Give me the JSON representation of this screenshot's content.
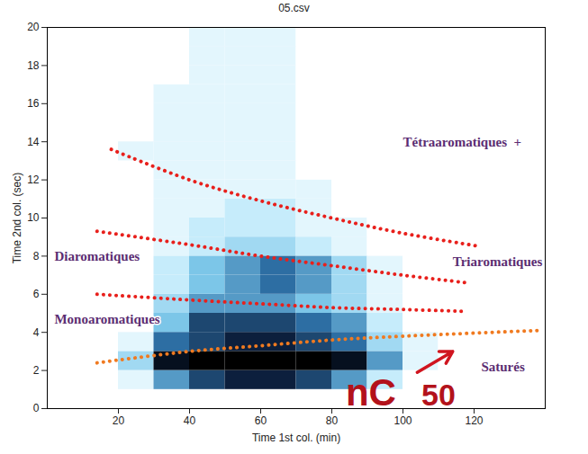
{
  "chart_data": {
    "type": "heatmap",
    "title": "05.csv",
    "x_label": "Time 1st col. (min)",
    "y_label": "Time 2nd col. (sec)",
    "xlim": [
      0,
      140
    ],
    "ylim": [
      0,
      20
    ],
    "xticks": [
      20,
      40,
      60,
      80,
      100,
      120
    ],
    "yticks": [
      0,
      2,
      4,
      6,
      8,
      10,
      12,
      14,
      16,
      18,
      20
    ],
    "grid": false,
    "cells": {
      "x": [
        0,
        10,
        20,
        30,
        40,
        50,
        60,
        70,
        80,
        90,
        100,
        110,
        120,
        130
      ],
      "y": [
        0,
        1,
        2,
        3,
        4,
        5,
        6,
        7,
        8,
        9,
        10,
        11,
        12,
        13,
        14,
        15,
        16,
        17,
        18,
        19
      ],
      "range": [
        0,
        10
      ],
      "values": [
        [
          0,
          0,
          0,
          0,
          0,
          0,
          0,
          0,
          0,
          0,
          0,
          0,
          0,
          0
        ],
        [
          0,
          0,
          1,
          5,
          7,
          8,
          8,
          7,
          5,
          2,
          0,
          0,
          0,
          0
        ],
        [
          0,
          0,
          3,
          9,
          10,
          10,
          10,
          10,
          9,
          5,
          1,
          0,
          0,
          0
        ],
        [
          0,
          0,
          1,
          6,
          7,
          8,
          8,
          7,
          6,
          3,
          1,
          0,
          0,
          0
        ],
        [
          0,
          0,
          0,
          4,
          7,
          7,
          7,
          6,
          5,
          2,
          0,
          0,
          0,
          0
        ],
        [
          0,
          0,
          0,
          3,
          5,
          5,
          5,
          4,
          3,
          1,
          0,
          0,
          0,
          0
        ],
        [
          0,
          0,
          0,
          2,
          4,
          5,
          6,
          5,
          3,
          1,
          0,
          0,
          0,
          0
        ],
        [
          0,
          0,
          0,
          2,
          4,
          5,
          6,
          5,
          3,
          1,
          0,
          0,
          0,
          0
        ],
        [
          0,
          0,
          0,
          1,
          2,
          3,
          3,
          2,
          1,
          0,
          0,
          0,
          0,
          0
        ],
        [
          0,
          0,
          0,
          1,
          2,
          2,
          2,
          1,
          1,
          0,
          0,
          0,
          0,
          0
        ],
        [
          0,
          0,
          0,
          1,
          1,
          2,
          2,
          1,
          0,
          0,
          0,
          0,
          0,
          0
        ],
        [
          0,
          0,
          0,
          1,
          1,
          1,
          1,
          1,
          0,
          0,
          0,
          0,
          0,
          0
        ],
        [
          0,
          0,
          0,
          1,
          1,
          1,
          1,
          0,
          0,
          0,
          0,
          0,
          0,
          0
        ],
        [
          0,
          0,
          1,
          1,
          1,
          1,
          1,
          0,
          0,
          0,
          0,
          0,
          0,
          0
        ],
        [
          0,
          0,
          0,
          1,
          1,
          1,
          1,
          0,
          0,
          0,
          0,
          0,
          0,
          0
        ],
        [
          0,
          0,
          0,
          1,
          1,
          1,
          1,
          0,
          0,
          0,
          0,
          0,
          0,
          0
        ],
        [
          0,
          0,
          0,
          1,
          1,
          1,
          1,
          0,
          0,
          0,
          0,
          0,
          0,
          0
        ],
        [
          0,
          0,
          0,
          0,
          1,
          1,
          1,
          0,
          0,
          0,
          0,
          0,
          0,
          0
        ],
        [
          0,
          0,
          0,
          0,
          1,
          1,
          1,
          0,
          0,
          0,
          0,
          0,
          0,
          0
        ],
        [
          0,
          0,
          0,
          0,
          1,
          1,
          1,
          0,
          0,
          0,
          0,
          0,
          0,
          0
        ]
      ]
    },
    "series": [
      {
        "color": "#e8201c",
        "line_style": "dotted",
        "x": [
          18,
          40,
          60,
          80,
          100,
          122
        ],
        "y": [
          13.6,
          12.0,
          10.9,
          10.0,
          9.2,
          8.5
        ]
      },
      {
        "color": "#e8201c",
        "line_style": "dotted",
        "x": [
          14,
          40,
          60,
          80,
          100,
          118
        ],
        "y": [
          9.3,
          8.6,
          8.0,
          7.5,
          7.0,
          6.6
        ]
      },
      {
        "color": "#e8201c",
        "line_style": "dotted",
        "x": [
          14,
          40,
          60,
          80,
          100,
          118
        ],
        "y": [
          6.0,
          5.7,
          5.5,
          5.3,
          5.2,
          5.1
        ]
      },
      {
        "color": "#f07a20",
        "line_style": "dotted",
        "x": [
          14,
          40,
          60,
          80,
          100,
          138
        ],
        "y": [
          2.4,
          3.0,
          3.3,
          3.6,
          3.8,
          4.1
        ]
      }
    ],
    "annotations": [
      {
        "text": "Tétraaromatiques  +",
        "x": 100,
        "y": 14.0,
        "color": "#5b2d72"
      },
      {
        "text": "Diaromatiques",
        "x": 2,
        "y": 8.0,
        "color": "#5b2d72"
      },
      {
        "text": "Triaromatiques",
        "x": 114,
        "y": 7.7,
        "color": "#5b2d72"
      },
      {
        "text": "Monoaromatiques",
        "x": 2,
        "y": 4.7,
        "color": "#5b2d72"
      },
      {
        "text": "Saturés",
        "x": 122,
        "y": 2.2,
        "color": "#5b2d72"
      },
      {
        "text": "nC",
        "x": 91,
        "y": 0.15,
        "color": "#b3121b"
      },
      {
        "text": "50",
        "x": 110,
        "y": 0.15,
        "color": "#b3121b"
      }
    ],
    "arrow": {
      "x1": 104,
      "y1": 1.9,
      "x2": 114,
      "y2": 3.0,
      "color": "#d0151f"
    }
  }
}
